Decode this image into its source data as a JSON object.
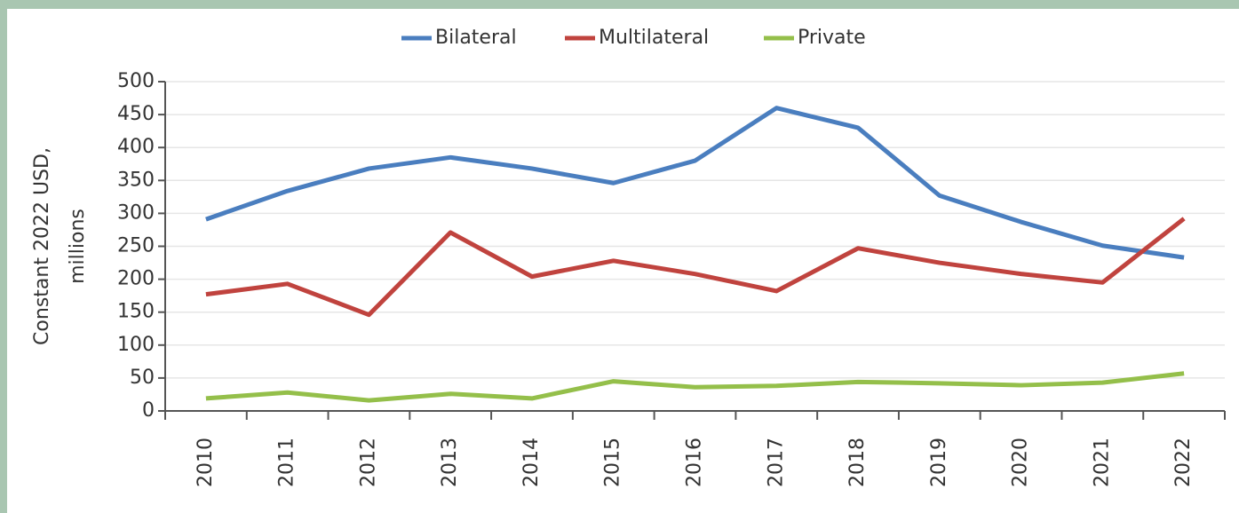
{
  "chart_data": {
    "type": "line",
    "ylabel": [
      "Constant 2022 USD,",
      "millions"
    ],
    "categories": [
      "2010",
      "2011",
      "2012",
      "2013",
      "2014",
      "2015",
      "2016",
      "2017",
      "2018",
      "2019",
      "2020",
      "2021",
      "2022"
    ],
    "series": [
      {
        "name": "Bilateral",
        "color": "#4a7ebf",
        "values": [
          291,
          334,
          368,
          385,
          368,
          346,
          380,
          460,
          430,
          327,
          287,
          251,
          233
        ]
      },
      {
        "name": "Multilateral",
        "color": "#c0433e",
        "values": [
          177,
          193,
          146,
          271,
          204,
          228,
          208,
          182,
          247,
          225,
          208,
          195,
          292
        ]
      },
      {
        "name": "Private",
        "color": "#94bf4a",
        "values": [
          19,
          28,
          16,
          26,
          19,
          45,
          36,
          38,
          44,
          42,
          39,
          43,
          57
        ]
      }
    ],
    "ylim": [
      0,
      500
    ],
    "yticks": [
      0,
      50,
      100,
      150,
      200,
      250,
      300,
      350,
      400,
      450,
      500
    ],
    "grid": true,
    "legend": "top"
  }
}
